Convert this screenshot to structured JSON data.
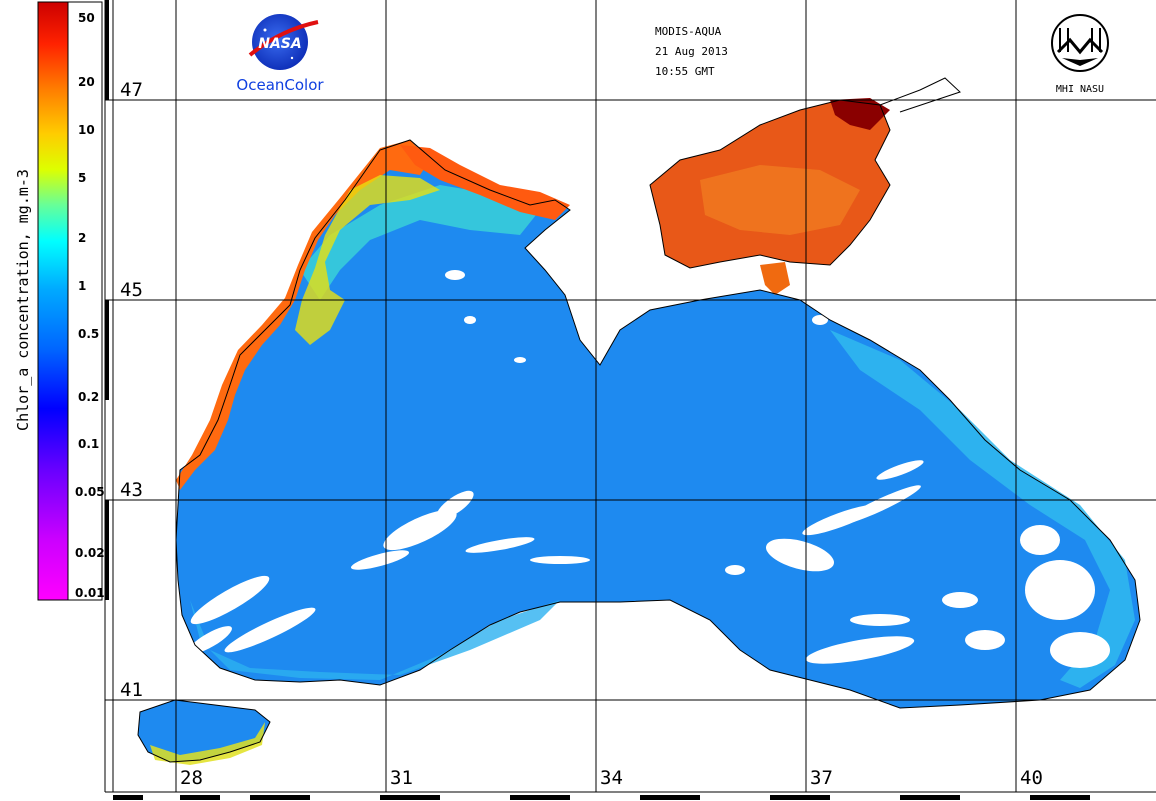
{
  "header": {
    "sensor": "MODIS-AQUA",
    "date": "21 Aug 2013",
    "time": "10:55 GMT"
  },
  "logos": {
    "nasa_text": "NASA",
    "oceancolor_text": "OceanColor",
    "mhi_text": "MHI NASU"
  },
  "colorbar": {
    "label": "Chlor_a concentration, mg.m-3",
    "ticks": [
      "50",
      "20",
      "10",
      "5",
      "2",
      "1",
      "0.5",
      "0.2",
      "0.1",
      "0.05",
      "0.02",
      "0.01"
    ],
    "scale": "log",
    "colors": [
      "#ff00ff",
      "#9900ff",
      "#0000ff",
      "#0088ff",
      "#00ffff",
      "#66ff66",
      "#ffff00",
      "#ffaa00",
      "#ff4400",
      "#cc0000",
      "#880000"
    ]
  },
  "grid": {
    "lat_labels": [
      "47",
      "45",
      "43",
      "41"
    ],
    "lon_labels": [
      "28",
      "31",
      "34",
      "37",
      "40"
    ]
  },
  "colors": {
    "sea": "#1e8af0",
    "coast_high": "#ff6a10",
    "azov": "#e85818",
    "grid": "#000000"
  }
}
